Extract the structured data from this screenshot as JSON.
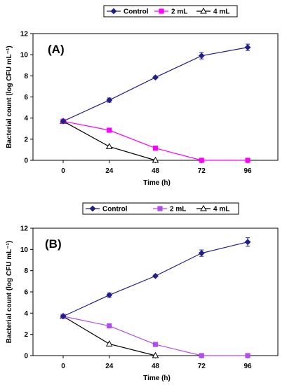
{
  "chart_data": [
    {
      "type": "line",
      "panel_label": "(A)",
      "xlabel": "Time (h)",
      "ylabel": "Bacterial count (log CFU mL⁻¹)",
      "x": [
        0,
        24,
        48,
        72,
        96
      ],
      "xticks": [
        "0",
        "24",
        "48",
        "72",
        "96"
      ],
      "yticks": [
        "0",
        "2",
        "4",
        "6",
        "8",
        "10",
        "12"
      ],
      "ylim": [
        0,
        12
      ],
      "grid": false,
      "legend_position": "top-center",
      "series": [
        {
          "name": "Control",
          "color": "#1f1f8c",
          "marker": "diamond-filled",
          "values": [
            3.7,
            5.7,
            7.85,
            9.9,
            10.7
          ],
          "errors": [
            0.1,
            0.2,
            0.1,
            0.3,
            0.3
          ]
        },
        {
          "name": "2 mL",
          "color": "#ff00ff",
          "marker": "square-filled",
          "values": [
            3.7,
            2.85,
            1.15,
            0,
            0
          ],
          "errors": [
            0,
            0,
            0,
            0,
            0
          ]
        },
        {
          "name": "4 mL",
          "color": "#000000",
          "marker": "triangle-open",
          "values": [
            3.7,
            1.3,
            0,
            null,
            null
          ],
          "errors": [
            0,
            0,
            0,
            0,
            0
          ]
        }
      ]
    },
    {
      "type": "line",
      "panel_label": "(B)",
      "xlabel": "Time (h)",
      "ylabel": "Bacterial count (log CFU mL⁻¹)",
      "x": [
        0,
        24,
        48,
        72,
        96
      ],
      "xticks": [
        "0",
        "24",
        "48",
        "72",
        "96"
      ],
      "yticks": [
        "0",
        "2",
        "4",
        "6",
        "8",
        "10",
        "12"
      ],
      "ylim": [
        0,
        12
      ],
      "grid": false,
      "legend_position": "top-center",
      "series": [
        {
          "name": "Control",
          "color": "#1f1f8c",
          "marker": "diamond-filled",
          "values": [
            3.7,
            5.7,
            7.5,
            9.65,
            10.7
          ],
          "errors": [
            0.1,
            0.2,
            0.1,
            0.3,
            0.4
          ]
        },
        {
          "name": "2 mL",
          "color": "#b24cf0",
          "marker": "square-filled",
          "values": [
            3.7,
            2.8,
            1.05,
            0,
            0
          ],
          "errors": [
            0,
            0.15,
            0.15,
            0,
            0
          ]
        },
        {
          "name": "4 mL",
          "color": "#000000",
          "marker": "triangle-open",
          "values": [
            3.7,
            1.1,
            0,
            null,
            null
          ],
          "errors": [
            0,
            0,
            0,
            0,
            0
          ]
        }
      ]
    }
  ]
}
